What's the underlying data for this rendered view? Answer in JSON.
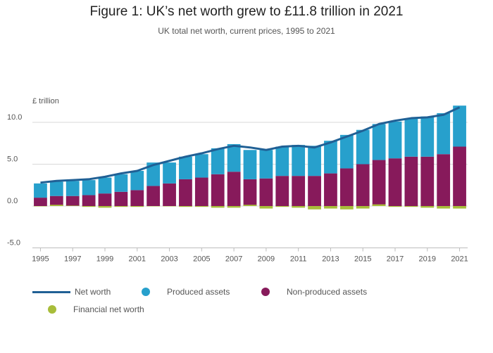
{
  "title": "Figure 1: UK’s net worth grew to £11.8 trillion in 2021",
  "subtitle": "UK total net worth, current prices, 1995 to 2021",
  "colors": {
    "net_worth": "#206095",
    "produced": "#27a0cc",
    "non_produced": "#871a5b",
    "financial": "#a8bd3a",
    "grid": "#d9d9d9",
    "axis": "#bcbcbc"
  },
  "chart_data": {
    "type": "bar",
    "stacked": true,
    "title": "Figure 1: UK’s net worth grew to £11.8 trillion in 2021",
    "subtitle": "UK total net worth, current prices, 1995 to 2021",
    "ylabel": "£ trillion",
    "xlabel": "",
    "ylim": [
      -5,
      12
    ],
    "yticks": [
      "10.0",
      "5.0",
      "0.0",
      "-5.0"
    ],
    "ytick_values": [
      10,
      5,
      0,
      -5
    ],
    "categories": [
      "1995",
      "1996",
      "1997",
      "1998",
      "1999",
      "2000",
      "2001",
      "2002",
      "2003",
      "2004",
      "2005",
      "2006",
      "2007",
      "2008",
      "2009",
      "2010",
      "2011",
      "2012",
      "2013",
      "2014",
      "2015",
      "2016",
      "2017",
      "2018",
      "2019",
      "2020",
      "2021"
    ],
    "xtick_labels": [
      "1995",
      "1997",
      "1999",
      "2001",
      "2003",
      "2005",
      "2007",
      "2009",
      "2011",
      "2013",
      "2015",
      "2017",
      "2019",
      "2021"
    ],
    "series": [
      {
        "name": "Non-produced assets",
        "values": [
          1.0,
          1.2,
          1.2,
          1.3,
          1.5,
          1.7,
          1.9,
          2.4,
          2.7,
          3.2,
          3.4,
          3.8,
          4.1,
          3.2,
          3.3,
          3.6,
          3.6,
          3.6,
          3.9,
          4.5,
          5.0,
          5.5,
          5.7,
          5.9,
          5.9,
          6.2,
          7.1
        ]
      },
      {
        "name": "Produced assets",
        "values": [
          1.7,
          1.7,
          1.8,
          1.8,
          1.9,
          2.1,
          2.3,
          2.8,
          2.5,
          2.7,
          2.8,
          3.1,
          3.3,
          3.5,
          3.4,
          3.5,
          3.7,
          3.6,
          3.9,
          4.0,
          4.1,
          4.3,
          4.4,
          4.6,
          4.8,
          4.9,
          4.9
        ]
      },
      {
        "name": "Financial net worth",
        "values": [
          0.0,
          0.15,
          0.05,
          -0.1,
          -0.2,
          -0.1,
          -0.1,
          0.0,
          0.0,
          -0.1,
          -0.1,
          -0.2,
          -0.2,
          0.15,
          -0.3,
          -0.1,
          -0.2,
          -0.4,
          -0.3,
          -0.4,
          -0.3,
          0.2,
          -0.1,
          -0.1,
          -0.2,
          -0.3,
          -0.3
        ]
      },
      {
        "name": "Net worth",
        "type": "line",
        "values": [
          2.8,
          3.0,
          3.1,
          3.2,
          3.5,
          3.9,
          4.2,
          4.9,
          5.4,
          5.9,
          6.3,
          6.8,
          7.2,
          7.0,
          6.7,
          7.1,
          7.2,
          7.0,
          7.6,
          8.3,
          9.0,
          9.8,
          10.2,
          10.5,
          10.6,
          10.9,
          11.8
        ]
      }
    ],
    "legend_position": "bottom-left",
    "grid": true
  }
}
